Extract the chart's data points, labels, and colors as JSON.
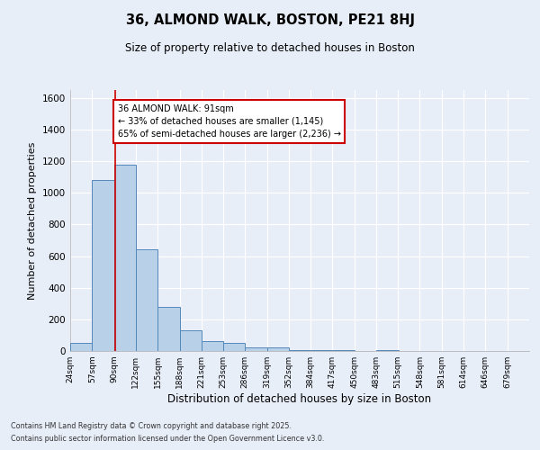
{
  "title": "36, ALMOND WALK, BOSTON, PE21 8HJ",
  "subtitle": "Size of property relative to detached houses in Boston",
  "xlabel": "Distribution of detached houses by size in Boston",
  "ylabel": "Number of detached properties",
  "bins": [
    24,
    57,
    90,
    122,
    155,
    188,
    221,
    253,
    286,
    319,
    352,
    384,
    417,
    450,
    483,
    515,
    548,
    581,
    614,
    646,
    679
  ],
  "counts": [
    50,
    1080,
    1175,
    645,
    280,
    130,
    65,
    50,
    25,
    25,
    5,
    5,
    5,
    0,
    5,
    0,
    0,
    0,
    0,
    0
  ],
  "bar_color": "#b8d0e8",
  "bar_edge_color": "#5588bb",
  "red_line_x": 91,
  "annotation_text": "36 ALMOND WALK: 91sqm\n← 33% of detached houses are smaller (1,145)\n65% of semi-detached houses are larger (2,236) →",
  "annotation_box_color": "#ffffff",
  "annotation_box_edge": "#cc0000",
  "ylim": [
    0,
    1650
  ],
  "yticks": [
    0,
    200,
    400,
    600,
    800,
    1000,
    1200,
    1400,
    1600
  ],
  "footer1": "Contains HM Land Registry data © Crown copyright and database right 2025.",
  "footer2": "Contains public sector information licensed under the Open Government Licence v3.0.",
  "bg_color": "#e8eef8",
  "grid_color": "#ffffff"
}
